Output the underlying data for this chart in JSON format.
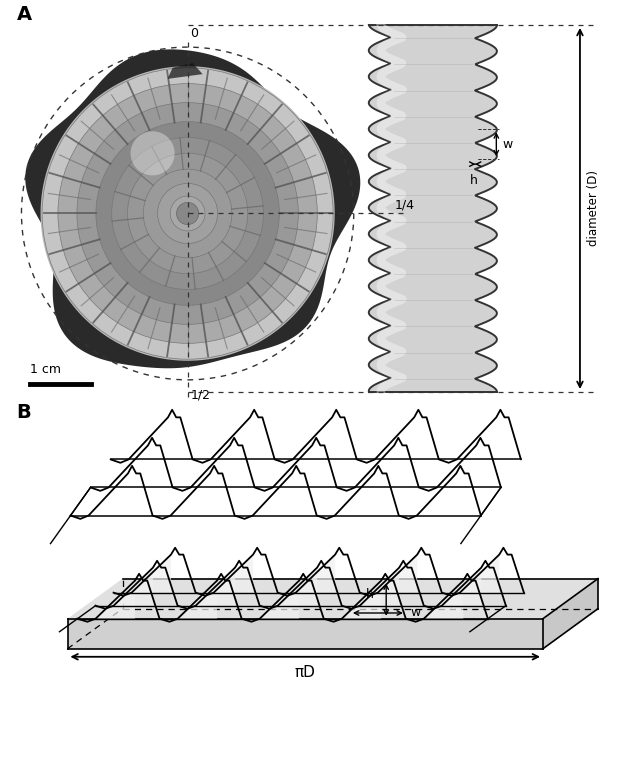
{
  "panel_A_label": "A",
  "panel_B_label": "B",
  "scale_bar_text": "1 cm",
  "label_0": "0",
  "label_quarter": "1/4",
  "label_half": "1/2",
  "label_w": "w",
  "label_h": "h",
  "label_diameter": "diameter (D)",
  "label_piD": "πD",
  "label_h_bottom": "h",
  "label_w_bottom": "w",
  "bg_color": "#ffffff",
  "fig_width": 6.23,
  "fig_height": 7.81,
  "dpi": 100
}
